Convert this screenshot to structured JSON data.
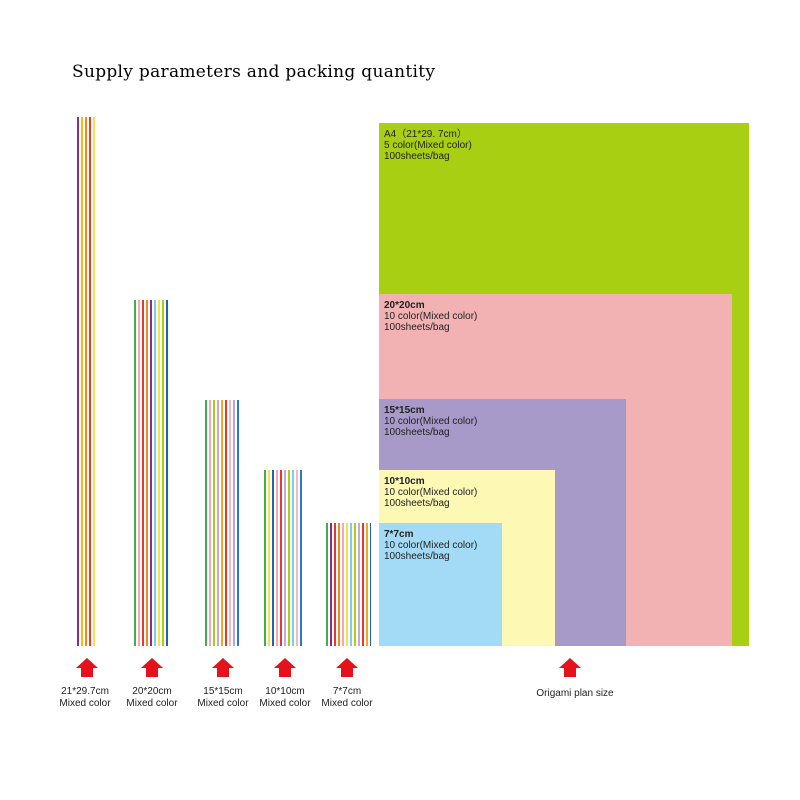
{
  "title": "Supply parameters and packing quantity",
  "colors": {
    "a4": "#a8cf12",
    "s20": "#f2b2b3",
    "s15": "#a79ac8",
    "s10": "#fdf8b4",
    "s7": "#a3dbf6",
    "arrow": "#e5121c"
  },
  "stacks": [
    {
      "size": "21*29.7cm",
      "color_label": "Mixed color",
      "line_colors": [
        "#8e2a8e",
        "#ffffff",
        "#f6c100",
        "#ffffff",
        "#f08a1c",
        "#ffffff",
        "#e6392f",
        "#ffffff",
        "#f6e14b"
      ]
    },
    {
      "size": "20*20cm",
      "color_label": "Mixed color",
      "line_colors": [
        "#3cb04a",
        "#ffffff",
        "#f4a7b9",
        "#ffffff",
        "#e6392f",
        "#ffffff",
        "#f08a1c",
        "#ffffff",
        "#8e2a8e",
        "#ffffff",
        "#7ccdf0",
        "#ffffff",
        "#f6e14b",
        "#ffffff",
        "#a8cf12",
        "#ffffff",
        "#1e64b4"
      ]
    },
    {
      "size": "15*15cm",
      "color_label": "Mixed color",
      "line_colors": [
        "#3cb04a",
        "#ffffff",
        "#f4a7b9",
        "#ffffff",
        "#a8cf12",
        "#ffffff",
        "#c7a6d9",
        "#ffffff",
        "#f6a623",
        "#ffffff",
        "#e6392f",
        "#ffffff",
        "#f2b8c6",
        "#ffffff",
        "#b6a6e0",
        "#ffffff",
        "#2a78c8"
      ]
    },
    {
      "size": "10*10cm",
      "color_label": "Mixed color",
      "line_colors": [
        "#3cb04a",
        "#ffffff",
        "#f6e14b",
        "#ffffff",
        "#1e64b4",
        "#ffffff",
        "#f4a7b9",
        "#ffffff",
        "#e6392f",
        "#ffffff",
        "#c7a6d9",
        "#ffffff",
        "#a8cf12",
        "#ffffff",
        "#7ccdf0",
        "#ffffff",
        "#f2b8c6",
        "#ffffff",
        "#2a78c8"
      ]
    },
    {
      "size": "7*7cm",
      "color_label": "Mixed color",
      "line_colors": [
        "#3cb04a",
        "#ffffff",
        "#8e2a8e",
        "#ffffff",
        "#e6392f",
        "#ffffff",
        "#f08a1c",
        "#ffffff",
        "#f4a7b9",
        "#ffffff",
        "#f6e14b",
        "#ffffff",
        "#7ccdf0",
        "#ffffff",
        "#a8cf12",
        "#ffffff",
        "#c7a6d9",
        "#ffffff",
        "#e6392f",
        "#ffffff",
        "#f6a623",
        "#ffffff",
        "#1e64b4"
      ]
    }
  ],
  "panels": {
    "a4": {
      "size": "A4（21*29. 7cm）",
      "colors": "5 color(Mixed color)",
      "qty": "100sheets/bag"
    },
    "s20": {
      "size": "20*20cm",
      "colors": "10 color(Mixed color)",
      "qty": "100sheets/bag"
    },
    "s15": {
      "size": "15*15cm",
      "colors": "10 color(Mixed color)",
      "qty": "100sheets/bag"
    },
    "s10": {
      "size": "10*10cm",
      "colors": "10 color(Mixed color)",
      "qty": "100sheets/bag"
    },
    "s7": {
      "size": "7*7cm",
      "colors": "10 color(Mixed color)",
      "qty": "100sheets/bag"
    }
  },
  "plan_caption": "Origami plan size"
}
